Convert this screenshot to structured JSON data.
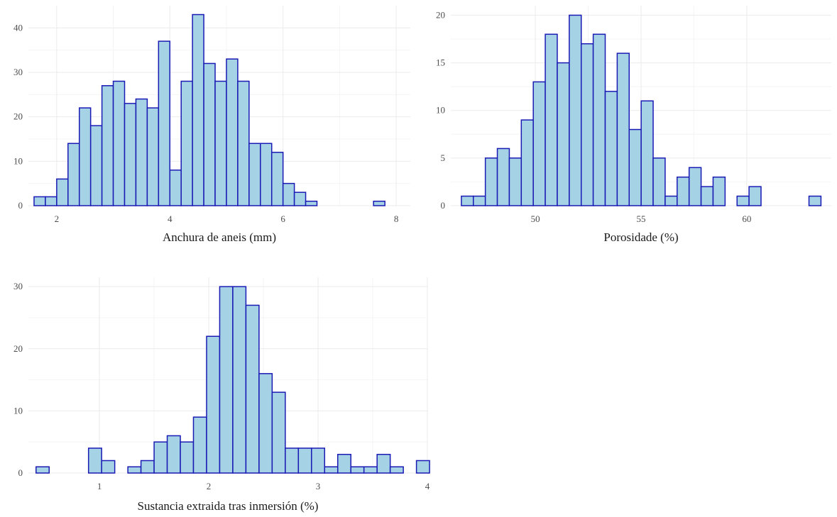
{
  "colors": {
    "fill": "#a6d2e6",
    "stroke": "#1a1ab4"
  },
  "chart_data": [
    {
      "type": "bar",
      "xlabel": "Anchura de aneis (mm)",
      "ylabel": "",
      "grid": true,
      "xlim": [
        1.5,
        8.25
      ],
      "ylim": [
        0,
        45
      ],
      "xticks": [
        2,
        4,
        6,
        8
      ],
      "yticks": [
        0,
        10,
        20,
        30,
        40
      ],
      "bin_start": 1.6,
      "bin_width": 0.2,
      "values": [
        2,
        2,
        6,
        14,
        22,
        18,
        27,
        28,
        23,
        24,
        22,
        37,
        8,
        28,
        43,
        32,
        28,
        33,
        28,
        14,
        14,
        12,
        5,
        3,
        1,
        0,
        0,
        0,
        0,
        0,
        1
      ]
    },
    {
      "type": "bar",
      "xlabel": "Porosidade (%)",
      "ylabel": "",
      "grid": true,
      "xlim": [
        46.0,
        64.0
      ],
      "ylim": [
        0,
        21
      ],
      "xticks": [
        50,
        55,
        60
      ],
      "yticks": [
        0,
        5,
        10,
        15,
        20
      ],
      "bin_start": 46.5,
      "bin_width": 0.567,
      "values": [
        1,
        1,
        5,
        6,
        5,
        9,
        13,
        18,
        15,
        20,
        17,
        18,
        12,
        16,
        8,
        11,
        5,
        1,
        3,
        4,
        2,
        3,
        0,
        1,
        2,
        0,
        0,
        0,
        0,
        1
      ]
    },
    {
      "type": "bar",
      "xlabel": "Sustancia extraida tras inmersión (%)",
      "ylabel": "",
      "grid": true,
      "xlim": [
        0.35,
        4.0
      ],
      "ylim": [
        0,
        31.5
      ],
      "xticks": [
        1,
        2,
        3,
        4
      ],
      "yticks": [
        0,
        10,
        20,
        30
      ],
      "bin_start": 0.42,
      "bin_width": 0.12,
      "values": [
        1,
        0,
        0,
        0,
        4,
        2,
        0,
        1,
        2,
        5,
        6,
        5,
        9,
        22,
        30,
        30,
        27,
        16,
        13,
        4,
        4,
        4,
        1,
        3,
        1,
        1,
        3,
        1,
        0,
        2
      ]
    }
  ]
}
